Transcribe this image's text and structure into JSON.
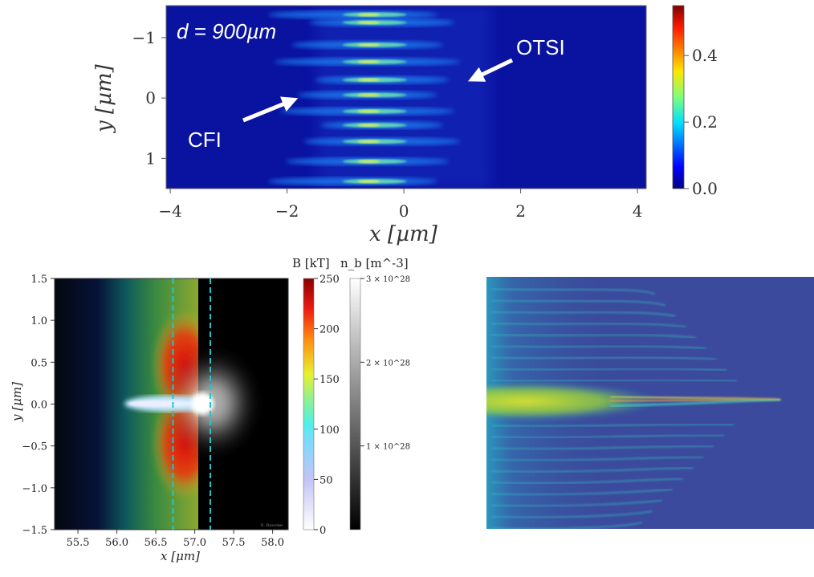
{
  "chart_data": [
    {
      "type": "heatmap",
      "xlabel": "x [µm]",
      "ylabel": "y [µm]",
      "xlim": [
        -4.07,
        4.15
      ],
      "ylim": [
        -1.5,
        1.53
      ],
      "xticks": [
        "−4",
        "−2",
        "0",
        "2",
        "4"
      ],
      "yticks": [
        "−1",
        "0",
        "1"
      ],
      "annotations": {
        "distance": "d = 900µm",
        "arrow_left": "CFI",
        "arrow_right": "OTSI"
      },
      "colormap": "jet",
      "colorbar": {
        "range": [
          0.0,
          0.55
        ],
        "ticks": [
          "0.0",
          "0.2",
          "0.4"
        ]
      },
      "background_color": "#0a12a0",
      "filament_y_values": [
        1.38,
        1.25,
        0.88,
        0.6,
        0.3,
        0.05,
        -0.22,
        -0.45,
        -0.72,
        -1.05,
        -1.38
      ]
    },
    {
      "type": "heatmap",
      "xlabel": "x [μm]",
      "ylabel": "y [μm]",
      "xlim": [
        55.2,
        58.2
      ],
      "ylim": [
        -1.5,
        1.5
      ],
      "xticks": [
        "55.5",
        "56.0",
        "56.5",
        "57.0",
        "57.5",
        "58.0"
      ],
      "yticks": [
        "1.5",
        "1.0",
        "0.5",
        "0.0",
        "−0.5",
        "−1.0",
        "−1.5"
      ],
      "dashed_lines_x": [
        56.72,
        57.2
      ],
      "dashed_line_color": "#22c4c8",
      "watermark": "X. Davoine",
      "colorbars": [
        {
          "label": "B [kT]",
          "range": [
            0,
            250
          ],
          "ticks": [
            "0",
            "50",
            "100",
            "150",
            "200",
            "250"
          ],
          "colormap": "white-blue-green-yellow-red"
        },
        {
          "label": "n_b [m^-3]",
          "range": [
            0,
            3e+28
          ],
          "ticks": [
            "1 × 10^28",
            "2 × 10^28",
            "3 × 10^28"
          ],
          "colormap": "gray"
        }
      ]
    },
    {
      "type": "heatmap",
      "background_color": "#3b4a9c",
      "colormap": "viridis",
      "axes": "none"
    }
  ]
}
